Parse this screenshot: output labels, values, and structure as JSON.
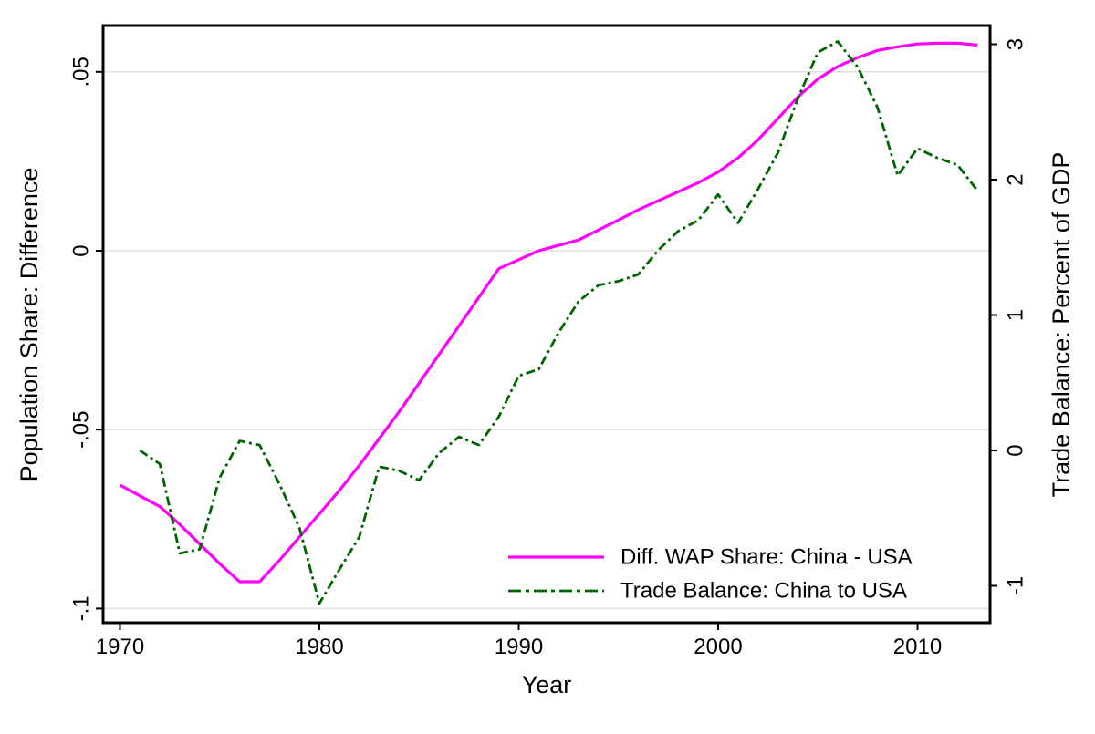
{
  "chart_data": {
    "type": "line",
    "title": "",
    "xlabel": "Year",
    "ylabel_left": "Population Share: Difference",
    "ylabel_right": "Trade Balance: Percent of GDP",
    "grid": "horizontal",
    "legend_position": "inside-bottom-right",
    "background": "#ffffff",
    "grid_color": "#e0e0e0",
    "border_color": "#000000",
    "x_axis": {
      "title": "Year",
      "ticks": [
        {
          "label": "1970",
          "value": 1970
        },
        {
          "label": "1980",
          "value": 1980
        },
        {
          "label": "1990",
          "value": 1990
        },
        {
          "label": "2000",
          "value": 2000
        },
        {
          "label": "2010",
          "value": 2010
        }
      ],
      "range": [
        1969.2,
        2013.6
      ]
    },
    "left_axis": {
      "title": "Population Share: Difference",
      "ticks": [
        {
          "label": ".05",
          "value": 0.05
        },
        {
          "label": "0",
          "value": 0
        },
        {
          "label": "-.05",
          "value": -0.05
        },
        {
          "label": "-.1",
          "value": -0.1
        }
      ],
      "range": [
        -0.104,
        0.063
      ]
    },
    "right_axis": {
      "title": "Trade Balance: Percent of GDP",
      "ticks": [
        {
          "label": "3",
          "value": 3
        },
        {
          "label": "2",
          "value": 2
        },
        {
          "label": "1",
          "value": 1
        },
        {
          "label": "0",
          "value": 0
        },
        {
          "label": "-1",
          "value": -1
        }
      ],
      "range": [
        -1.28,
        3.14
      ]
    },
    "series": [
      {
        "name": "Diff. WAP Share: China - USA",
        "axis": "left",
        "color": "#ff00ff",
        "style": "solid",
        "years": [
          1970,
          1971,
          1972,
          1973,
          1974,
          1975,
          1976,
          1977,
          1978,
          1979,
          1980,
          1981,
          1982,
          1983,
          1984,
          1985,
          1986,
          1987,
          1988,
          1989,
          1990,
          1991,
          1992,
          1993,
          1994,
          1995,
          1996,
          1997,
          1998,
          1999,
          2000,
          2001,
          2002,
          2003,
          2004,
          2005,
          2006,
          2007,
          2008,
          2009,
          2010,
          2011,
          2012,
          2013
        ],
        "values": [
          -0.0655,
          -0.0685,
          -0.0715,
          -0.0765,
          -0.082,
          -0.0875,
          -0.0925,
          -0.0925,
          -0.0865,
          -0.08,
          -0.0735,
          -0.067,
          -0.06,
          -0.0525,
          -0.045,
          -0.037,
          -0.029,
          -0.021,
          -0.013,
          -0.005,
          -0.0025,
          0.0,
          0.0015,
          0.003,
          0.0058,
          0.0086,
          0.0115,
          0.014,
          0.0165,
          0.019,
          0.022,
          0.026,
          0.031,
          0.037,
          0.043,
          0.048,
          0.0515,
          0.054,
          0.056,
          0.057,
          0.0578,
          0.058,
          0.058,
          0.0575
        ]
      },
      {
        "name": "Trade Balance: China to USA",
        "axis": "right",
        "color": "#006400",
        "style": "dash-dot",
        "years": [
          1971,
          1972,
          1973,
          1974,
          1975,
          1976,
          1977,
          1978,
          1979,
          1980,
          1981,
          1982,
          1983,
          1984,
          1985,
          1986,
          1987,
          1988,
          1989,
          1990,
          1991,
          1992,
          1993,
          1994,
          1995,
          1996,
          1997,
          1998,
          1999,
          2000,
          2001,
          2002,
          2003,
          2004,
          2005,
          2006,
          2007,
          2008,
          2009,
          2010,
          2011,
          2012,
          2013
        ],
        "values": [
          0.0,
          -0.1,
          -0.76,
          -0.73,
          -0.2,
          0.07,
          0.04,
          -0.25,
          -0.57,
          -1.13,
          -0.88,
          -0.64,
          -0.12,
          -0.15,
          -0.22,
          -0.02,
          0.1,
          0.04,
          0.25,
          0.55,
          0.6,
          0.87,
          1.1,
          1.22,
          1.25,
          1.3,
          1.48,
          1.62,
          1.7,
          1.89,
          1.68,
          1.93,
          2.2,
          2.6,
          2.94,
          3.02,
          2.83,
          2.53,
          2.03,
          2.23,
          2.16,
          2.11,
          1.92
        ]
      }
    ]
  }
}
